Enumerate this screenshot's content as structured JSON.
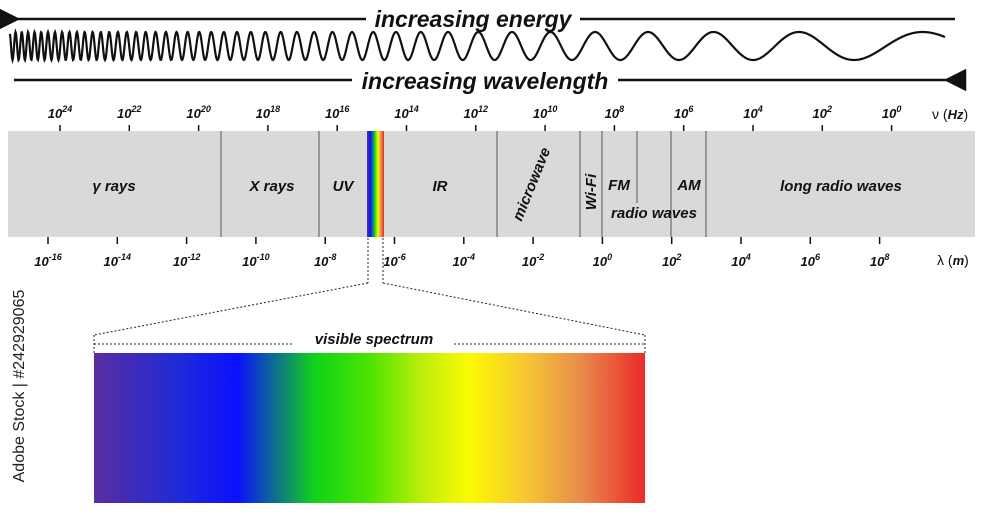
{
  "header": {
    "energy_label": "increasing energy",
    "wavelength_label": "increasing wavelength"
  },
  "frequency_axis": {
    "unit_symbol": "ν",
    "unit": "Hz",
    "ticks": [
      {
        "base": "10",
        "exp": "24"
      },
      {
        "base": "10",
        "exp": "22"
      },
      {
        "base": "10",
        "exp": "20"
      },
      {
        "base": "10",
        "exp": "18"
      },
      {
        "base": "10",
        "exp": "16"
      },
      {
        "base": "10",
        "exp": "14"
      },
      {
        "base": "10",
        "exp": "12"
      },
      {
        "base": "10",
        "exp": "10"
      },
      {
        "base": "10",
        "exp": "8"
      },
      {
        "base": "10",
        "exp": "6"
      },
      {
        "base": "10",
        "exp": "4"
      },
      {
        "base": "10",
        "exp": "2"
      },
      {
        "base": "10",
        "exp": "0"
      }
    ]
  },
  "wavelength_axis": {
    "unit_symbol": "λ",
    "unit": "m",
    "ticks": [
      {
        "base": "10",
        "exp": "-16"
      },
      {
        "base": "10",
        "exp": "-14"
      },
      {
        "base": "10",
        "exp": "-12"
      },
      {
        "base": "10",
        "exp": "-10"
      },
      {
        "base": "10",
        "exp": "-8"
      },
      {
        "base": "10",
        "exp": "-6"
      },
      {
        "base": "10",
        "exp": "-4"
      },
      {
        "base": "10",
        "exp": "-2"
      },
      {
        "base": "10",
        "exp": "0"
      },
      {
        "base": "10",
        "exp": "2"
      },
      {
        "base": "10",
        "exp": "4"
      },
      {
        "base": "10",
        "exp": "6"
      },
      {
        "base": "10",
        "exp": "8"
      }
    ]
  },
  "bands": {
    "gamma": "γ rays",
    "xray": "X rays",
    "uv": "UV",
    "ir": "IR",
    "microwave": "microwave",
    "wifi": "Wi-Fi",
    "fm": "FM",
    "am": "AM",
    "radio": "radio waves",
    "long_radio": "long radio waves"
  },
  "visible": {
    "label": "visible spectrum"
  },
  "watermark": {
    "text": "Adobe Stock | #242929065"
  },
  "colors": {
    "band_bg": "#d9d9d9",
    "ink": "#111111",
    "spectrum": [
      "#5b2da0",
      "#1f2bd6",
      "#0b10ff",
      "#10d21a",
      "#4ce400",
      "#c2ee0a",
      "#fbfb00",
      "#f7c832",
      "#e98e4c",
      "#ea2a2a"
    ]
  }
}
